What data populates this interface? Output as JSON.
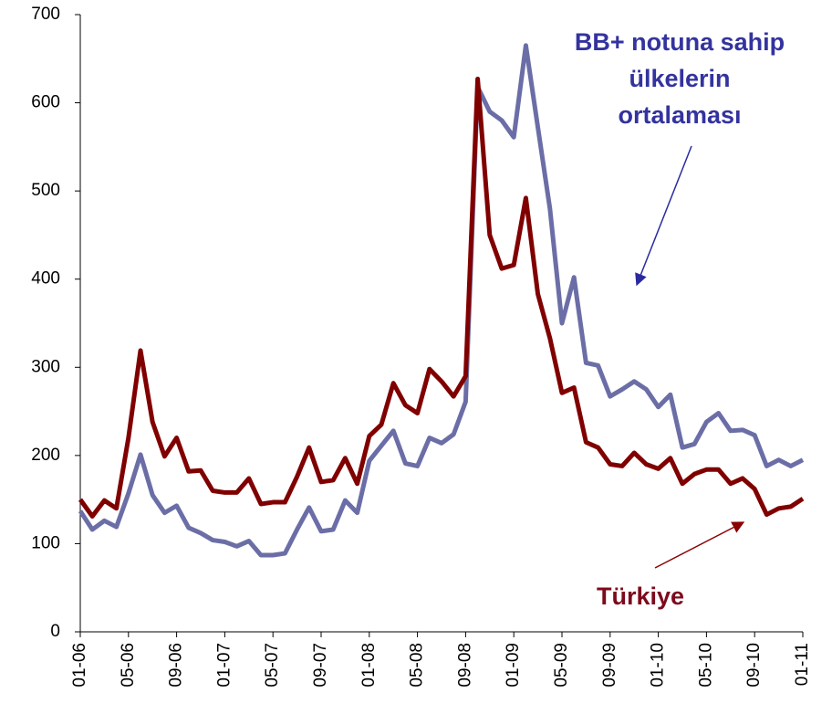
{
  "chart_data": {
    "type": "line",
    "categories": [
      "01-06",
      null,
      null,
      null,
      "05-06",
      null,
      null,
      null,
      "09-06",
      null,
      null,
      null,
      "01-07",
      null,
      null,
      null,
      "05-07",
      null,
      null,
      null,
      "09-07",
      null,
      null,
      null,
      "01-08",
      null,
      null,
      null,
      "05-08",
      null,
      null,
      null,
      "09-08",
      null,
      null,
      null,
      "01-09",
      null,
      null,
      null,
      "05-09",
      null,
      null,
      null,
      "09-09",
      null,
      null,
      null,
      "01-10",
      null,
      null,
      null,
      "05-10",
      null,
      null,
      null,
      "09-10",
      null,
      null,
      null,
      "01-11"
    ],
    "series": [
      {
        "color": "#6b6ea6",
        "values": [
          137,
          116,
          126,
          119,
          157,
          201,
          155,
          135,
          143,
          118,
          112,
          104,
          102,
          97,
          103,
          87,
          87,
          89,
          116,
          141,
          114,
          116,
          149,
          135,
          194,
          211,
          228,
          191,
          188,
          220,
          214,
          224,
          261,
          618,
          590,
          580,
          561,
          665,
          572,
          480,
          350,
          402,
          305,
          302,
          267,
          275,
          284,
          275,
          255,
          269,
          209,
          213,
          238,
          248,
          228,
          229,
          223,
          188,
          195,
          188,
          195
        ]
      },
      {
        "color": "#800000",
        "values": [
          150,
          131,
          149,
          140,
          220,
          319,
          238,
          199,
          220,
          182,
          183,
          160,
          158,
          158,
          174,
          145,
          147,
          147,
          176,
          209,
          170,
          172,
          197,
          168,
          222,
          235,
          282,
          257,
          248,
          298,
          284,
          267,
          290,
          627,
          450,
          412,
          416,
          492,
          383,
          333,
          271,
          277,
          215,
          209,
          190,
          188,
          203,
          190,
          185,
          197,
          168,
          179,
          184,
          184,
          168,
          174,
          162,
          133,
          140,
          142,
          151
        ]
      }
    ],
    "annotations": [
      {
        "color": "#33339f",
        "lines": [
          "BB+ notuna sahip",
          "ülkelerin",
          "ortalaması"
        ]
      },
      {
        "color": "#7d0a1c",
        "lines": [
          "Türkiye"
        ]
      }
    ],
    "ylim": [
      0,
      700
    ],
    "yticks": [
      0,
      100,
      200,
      300,
      400,
      500,
      600,
      700
    ]
  }
}
